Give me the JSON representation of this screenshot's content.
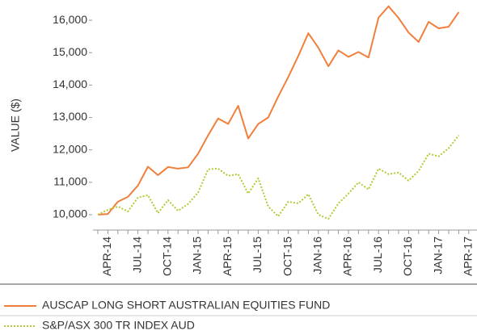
{
  "chart_data": {
    "type": "line",
    "ylabel": "VALUE ($)",
    "categories": [
      null,
      "APR-14",
      null,
      null,
      "JUL-14",
      null,
      null,
      "OCT-14",
      null,
      null,
      "JAN-15",
      null,
      null,
      "APR-15",
      null,
      null,
      "JUL-15",
      null,
      null,
      "OCT-15",
      null,
      null,
      "JAN-16",
      null,
      null,
      "APR-16",
      null,
      null,
      "JUL-16",
      null,
      null,
      "OCT-16",
      null,
      null,
      "JAN-17",
      null,
      null,
      "APR-17"
    ],
    "series": [
      {
        "name": "AUSCAP LONG SHORT AUSTRALIAN EQUITIES FUND",
        "color": "#f07f3c",
        "style": "solid",
        "values": [
          10000,
          10020,
          10400,
          10550,
          10900,
          11480,
          11220,
          11470,
          11420,
          11460,
          11880,
          12450,
          12970,
          12800,
          13360,
          12350,
          12800,
          13000,
          13650,
          14250,
          14900,
          15600,
          15150,
          14580,
          15070,
          14870,
          15020,
          14850,
          16080,
          16430,
          16070,
          15620,
          15330,
          15950,
          15750,
          15800,
          16250,
          null
        ]
      },
      {
        "name": "S&P/ASX 300 TR INDEX AUD",
        "color": "#b5c934",
        "style": "dotted",
        "values": [
          10000,
          10150,
          10250,
          10100,
          10530,
          10600,
          10050,
          10450,
          10120,
          10330,
          10680,
          11400,
          11420,
          11200,
          11250,
          10650,
          11120,
          10250,
          9950,
          10400,
          10350,
          10630,
          10000,
          9870,
          10350,
          10650,
          11000,
          10780,
          11420,
          11250,
          11300,
          11050,
          11350,
          11880,
          11800,
          12050,
          12450,
          null
        ]
      }
    ],
    "ylim": [
      9500,
      16500
    ],
    "yticks": [
      {
        "value": 10000,
        "label": "10,000"
      },
      {
        "value": 11000,
        "label": "11,000"
      },
      {
        "value": 12000,
        "label": "12,000"
      },
      {
        "value": 13000,
        "label": "13,000"
      },
      {
        "value": 14000,
        "label": "14,000"
      },
      {
        "value": 15000,
        "label": "15,000"
      },
      {
        "value": 16000,
        "label": "16,000"
      }
    ],
    "legend": "bottom"
  }
}
